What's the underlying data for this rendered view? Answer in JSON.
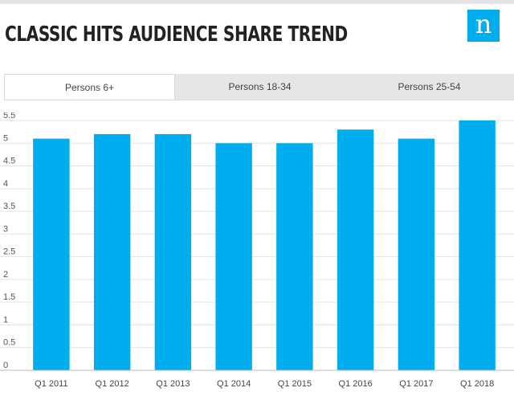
{
  "page": {
    "title": "CLASSIC HITS AUDIENCE SHARE TREND",
    "logo_glyph": "n",
    "accent_color": "#00aeef"
  },
  "tabs": [
    {
      "label": "Persons 6+",
      "active": true
    },
    {
      "label": "Persons 18-34",
      "active": false
    },
    {
      "label": "Persons 25-54",
      "active": false
    }
  ],
  "chart_data": {
    "type": "bar",
    "title": "CLASSIC HITS AUDIENCE SHARE TREND",
    "series_name": "Persons 6+",
    "categories": [
      "Q1 2011",
      "Q1 2012",
      "Q1 2013",
      "Q1 2014",
      "Q1 2015",
      "Q1 2016",
      "Q1 2017",
      "Q1 2018"
    ],
    "values": [
      5.1,
      5.2,
      5.2,
      5.0,
      5.0,
      5.3,
      5.1,
      5.5
    ],
    "yticks": [
      "0",
      "0.5",
      "1",
      "1.5",
      "2",
      "2.5",
      "3",
      "3.5",
      "4",
      "4.5",
      "5",
      "5.5"
    ],
    "ylim": [
      0,
      5.5
    ],
    "xlabel": "",
    "ylabel": "",
    "grid": true,
    "bar_color": "#00aeef"
  }
}
